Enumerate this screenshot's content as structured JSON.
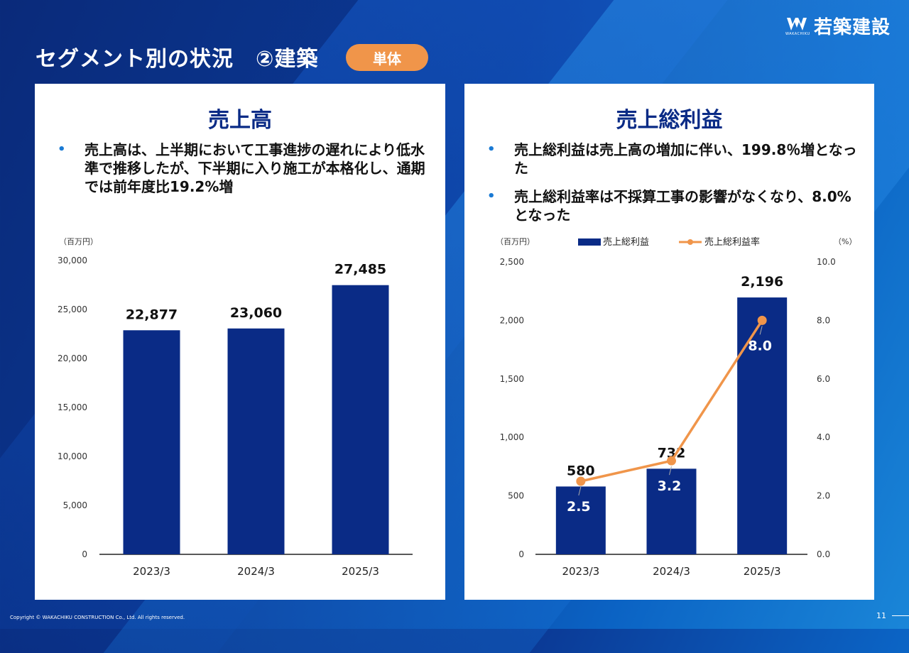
{
  "header": {
    "title": "セグメント別の状況　②建築",
    "badge": "単体",
    "logo_text": "若築建設",
    "logo_sub": "WAKACHIKU"
  },
  "left_panel": {
    "title": "売上高",
    "bullets": [
      "売上高は、上半期において工事進捗の遅れにより低水準で推移したが、下半期に入り施工が本格化し、通期では前年度比19.2%増"
    ]
  },
  "right_panel": {
    "title": "売上総利益",
    "bullets": [
      "売上総利益は売上高の増加に伴い、199.8％増となった",
      "売上総利益率は不採算工事の影響がなくなり、8.0%となった"
    ]
  },
  "chart_data": [
    {
      "type": "bar",
      "categories": [
        "2023/3",
        "2024/3",
        "2025/3"
      ],
      "values": [
        22877,
        23060,
        27485
      ],
      "value_labels": [
        "22,877",
        "23,060",
        "27,485"
      ],
      "y_unit": "（百万円）",
      "ylim": [
        0,
        30000
      ],
      "y_ticks": [
        "0",
        "5,000",
        "10,000",
        "15,000",
        "20,000",
        "25,000",
        "30,000"
      ],
      "bar_color": "#0a2b86",
      "grid": false
    },
    {
      "type": "bar",
      "categories": [
        "2023/3",
        "2024/3",
        "2025/3"
      ],
      "series": [
        {
          "name": "売上総利益",
          "type": "bar",
          "axis": "left",
          "values": [
            580,
            732,
            2196
          ],
          "labels": [
            "580",
            "732",
            "2,196"
          ],
          "color": "#0a2b86"
        },
        {
          "name": "売上総利益率",
          "type": "line",
          "axis": "right",
          "values": [
            2.5,
            3.2,
            8.0
          ],
          "labels": [
            "2.5",
            "3.2",
            "8.0"
          ],
          "color": "#f0954a"
        }
      ],
      "y_unit_left": "（百万円）",
      "y_unit_right": "（%）",
      "ylim_left": [
        0,
        2500
      ],
      "ylim_right": [
        0,
        10
      ],
      "y_ticks_left": [
        "0",
        "500",
        "1,000",
        "1,500",
        "2,000",
        "2,500"
      ],
      "y_ticks_right": [
        "0.0",
        "2.0",
        "4.0",
        "6.0",
        "8.0",
        "10.0"
      ],
      "legend_position": "top",
      "grid": false
    }
  ],
  "footer": {
    "copyright": "Copyright © WAKACHIKU CONSTRUCTION Co., Ltd. All rights reserved.",
    "page_number": "11"
  }
}
